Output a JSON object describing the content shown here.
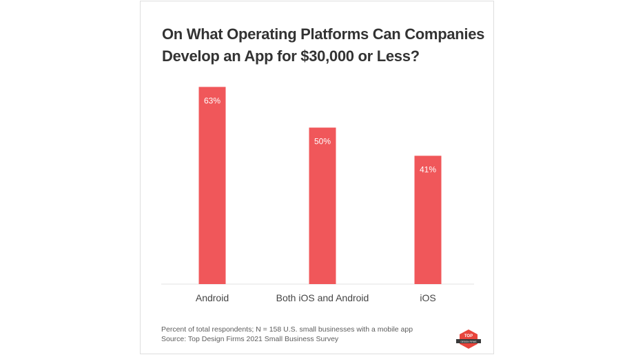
{
  "chart_data": {
    "type": "bar",
    "title": "On What Operating Platforms Can Companies Develop an App for $30,000 or Less?",
    "categories": [
      "Android",
      "Both iOS and Android",
      "iOS"
    ],
    "values": [
      63,
      50,
      41
    ],
    "value_labels": [
      "63%",
      "50%",
      "41%"
    ],
    "ylim": [
      0,
      65
    ],
    "grid": false,
    "legend": "none",
    "bar_color": "#f0575a"
  },
  "footnote": "Percent of total respondents; N = 158 U.S. small businesses with a mobile app",
  "source": "Source: Top Design Firms 2021 Small Business Survey",
  "logo": {
    "text_top": "TOP",
    "text_bottom": "DESIGN FIRMS",
    "icon": "top-design-firms-logo"
  },
  "colors": {
    "bar": "#f0575a",
    "title": "#333333",
    "text": "#444444"
  }
}
